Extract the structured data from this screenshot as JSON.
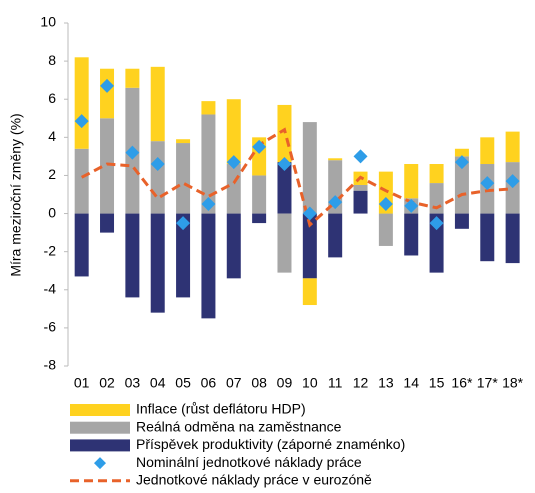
{
  "chart_data": {
    "type": "bar",
    "y_label": "Míra meziroční změny (%)",
    "categories": [
      "01",
      "02",
      "03",
      "04",
      "05",
      "06",
      "07",
      "08",
      "09",
      "10",
      "11",
      "12",
      "13",
      "14",
      "15",
      "16*",
      "17*",
      "18*"
    ],
    "ylim": [
      -8,
      10
    ],
    "yticks": [
      -8,
      -6,
      -4,
      -2,
      0,
      2,
      4,
      6,
      8,
      10
    ],
    "stacked": true,
    "series": [
      {
        "name": "Inflace (růst deflátoru HDP)",
        "type": "bar",
        "color": "#ffd21f",
        "values": [
          4.8,
          2.6,
          1.0,
          3.9,
          0.2,
          0.7,
          3.4,
          2.0,
          3.0,
          -1.4,
          0.1,
          0.7,
          2.2,
          1.8,
          1.0,
          0.4,
          1.4,
          1.6
        ]
      },
      {
        "name": "Reálná odměna na zaměstnance",
        "type": "bar",
        "color": "#a6a6a6",
        "values": [
          3.4,
          5.0,
          6.6,
          3.8,
          3.7,
          5.2,
          2.6,
          2.0,
          -3.1,
          4.8,
          2.8,
          0.3,
          -1.7,
          0.8,
          1.6,
          3.0,
          2.6,
          2.7
        ]
      },
      {
        "name": "Příspěvek produktivity (záporné znaménko)",
        "type": "bar",
        "color": "#2e3374",
        "values": [
          -3.3,
          -1.0,
          -4.4,
          -5.2,
          -4.4,
          -5.5,
          -3.4,
          -0.5,
          2.7,
          -3.4,
          -2.3,
          1.2,
          0,
          -2.2,
          -3.1,
          -0.8,
          -2.5,
          -2.6
        ]
      },
      {
        "name": "Nominální jednotkové náklady práce",
        "type": "scatter",
        "color": "#2e9de8",
        "values": [
          4.85,
          6.7,
          3.2,
          2.6,
          -0.5,
          0.5,
          2.7,
          3.5,
          2.6,
          0,
          0.6,
          3.0,
          0.5,
          0.4,
          -0.5,
          2.7,
          1.6,
          1.7
        ]
      },
      {
        "name": "Jednotkové náklady práce v eurozóně",
        "type": "line",
        "color": "#e8622a",
        "values": [
          1.9,
          2.6,
          2.5,
          0.8,
          1.6,
          0.9,
          1.6,
          3.6,
          4.4,
          -0.6,
          0.6,
          1.9,
          1.2,
          0.6,
          0.3,
          1.0,
          1.2,
          1.3
        ]
      }
    ]
  }
}
